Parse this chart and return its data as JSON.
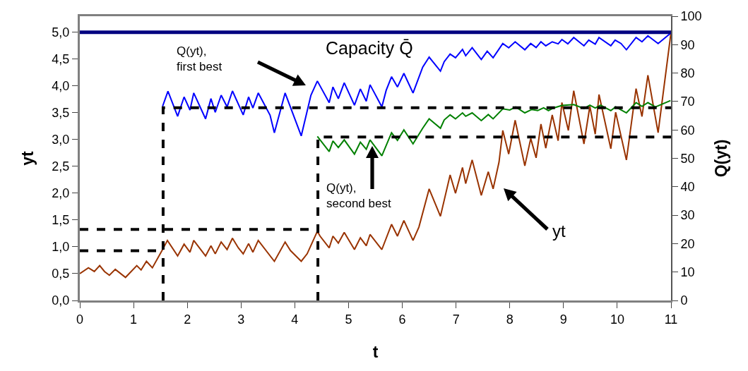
{
  "chart_data": {
    "type": "line",
    "xlabel": "t",
    "ylabel": "yt",
    "y2label": "Q(yt)",
    "marker": "none",
    "grid": false,
    "xlim": [
      0,
      11
    ],
    "xticks": [
      0,
      1,
      2,
      3,
      4,
      5,
      6,
      7,
      8,
      9,
      10,
      11
    ],
    "ylim": [
      0,
      5.3
    ],
    "yticks": [
      {
        "value": 0,
        "label": "0,0"
      },
      {
        "value": 0.5,
        "label": "0,5"
      },
      {
        "value": 1,
        "label": "1,0"
      },
      {
        "value": 1.5,
        "label": "1,5"
      },
      {
        "value": 2,
        "label": "2,0"
      },
      {
        "value": 2.5,
        "label": "2,5"
      },
      {
        "value": 3,
        "label": "3,0"
      },
      {
        "value": 3.5,
        "label": "3,5"
      },
      {
        "value": 4,
        "label": "4,0"
      },
      {
        "value": 4.5,
        "label": "4,5"
      },
      {
        "value": 5,
        "label": "5,0"
      }
    ],
    "y2lim": [
      0,
      100
    ],
    "y2ticks": [
      0,
      10,
      20,
      30,
      40,
      50,
      60,
      70,
      80,
      90,
      100
    ],
    "series": [
      {
        "color": "#993300",
        "x": [
          0,
          0.16,
          0.27,
          0.37,
          0.46,
          0.55,
          0.66,
          0.85,
          1.06,
          1.14,
          1.24,
          1.35,
          1.54,
          1.63,
          1.82,
          1.94,
          2.05,
          2.12,
          2.34,
          2.44,
          2.52,
          2.63,
          2.74,
          2.84,
          2.95,
          3.04,
          3.14,
          3.22,
          3.32,
          3.62,
          3.82,
          3.92,
          4.12,
          4.23,
          4.42,
          4.47,
          4.64,
          4.71,
          4.81,
          4.92,
          5.11,
          5.22,
          5.33,
          5.4,
          5.62,
          5.8,
          5.91,
          6.03,
          6.2,
          6.31,
          6.5,
          6.71,
          6.89,
          6.99,
          7.12,
          7.18,
          7.3,
          7.47,
          7.6,
          7.69,
          7.8,
          7.87,
          7.98,
          8.1,
          8.28,
          8.39,
          8.49,
          8.58,
          8.67,
          8.79,
          8.9,
          8.97,
          9.09,
          9.19,
          9.38,
          9.49,
          9.59,
          9.66,
          9.88,
          9.97,
          10.17,
          10.35,
          10.46,
          10.57,
          10.76,
          11
        ],
        "values": [
          0.5,
          0.61,
          0.54,
          0.65,
          0.54,
          0.47,
          0.58,
          0.43,
          0.65,
          0.57,
          0.73,
          0.61,
          0.95,
          1.12,
          0.83,
          1.05,
          0.9,
          1.12,
          0.83,
          1.02,
          0.87,
          1.09,
          0.95,
          1.16,
          0.98,
          0.87,
          1.06,
          0.9,
          1.12,
          0.73,
          1.09,
          0.93,
          0.73,
          0.87,
          1.29,
          1.2,
          0.98,
          1.2,
          1.07,
          1.27,
          0.95,
          1.17,
          1.02,
          1.23,
          0.95,
          1.42,
          1.2,
          1.49,
          1.12,
          1.37,
          2.08,
          1.57,
          2.34,
          2.0,
          2.48,
          2.18,
          2.62,
          1.96,
          2.4,
          2.08,
          2.58,
          3.17,
          2.73,
          3.36,
          2.51,
          3.02,
          2.66,
          3.29,
          2.84,
          3.46,
          2.98,
          3.69,
          3.17,
          3.91,
          2.92,
          3.62,
          3.1,
          3.84,
          2.83,
          3.51,
          2.62,
          3.95,
          3.43,
          4.2,
          3.13,
          5.0
        ]
      },
      {
        "color": "#0000ff",
        "axis": "y2",
        "x": [
          1.54,
          1.64,
          1.82,
          1.94,
          2.05,
          2.12,
          2.34,
          2.44,
          2.52,
          2.63,
          2.74,
          2.84,
          3.04,
          3.14,
          3.22,
          3.32,
          3.54,
          3.62,
          3.82,
          4.12,
          4.3,
          4.42,
          4.64,
          4.71,
          4.81,
          4.92,
          5.11,
          5.22,
          5.33,
          5.4,
          5.62,
          5.7,
          5.8,
          5.91,
          6.03,
          6.2,
          6.38,
          6.5,
          6.71,
          6.78,
          6.89,
          6.99,
          7.12,
          7.18,
          7.3,
          7.47,
          7.58,
          7.69,
          7.87,
          7.98,
          8.1,
          8.28,
          8.39,
          8.49,
          8.58,
          8.67,
          8.79,
          8.9,
          8.97,
          9.08,
          9.19,
          9.38,
          9.47,
          9.59,
          9.66,
          9.88,
          9.96,
          10.07,
          10.17,
          10.35,
          10.46,
          10.57,
          10.76,
          10.99
        ],
        "values": [
          68.3,
          73.6,
          64.8,
          71.6,
          67,
          73,
          63.9,
          71,
          66.2,
          72.2,
          68.1,
          73.7,
          65.3,
          71.6,
          67.7,
          73,
          65.2,
          59,
          73,
          57.9,
          72.2,
          77.2,
          69.6,
          75.1,
          71,
          76.6,
          68.7,
          74.4,
          70.1,
          75.9,
          68.1,
          73.9,
          78.7,
          75.1,
          79.9,
          73,
          82.1,
          85.6,
          80.7,
          84,
          86.7,
          85.4,
          88.3,
          86.1,
          88.9,
          84.8,
          87.7,
          85.4,
          90.4,
          88.9,
          91,
          88.2,
          90.4,
          89,
          91,
          89.6,
          91,
          90.3,
          91.8,
          90.3,
          92.5,
          89.6,
          91.6,
          90.2,
          92.5,
          89.6,
          91.6,
          90.4,
          88.2,
          92.5,
          91,
          93.1,
          90.4,
          94
        ]
      },
      {
        "color": "#008000",
        "axis": "y2",
        "x": [
          4.42,
          4.64,
          4.71,
          4.81,
          4.92,
          5.11,
          5.22,
          5.33,
          5.4,
          5.62,
          5.8,
          5.91,
          6.03,
          6.2,
          6.38,
          6.5,
          6.71,
          6.78,
          6.89,
          6.99,
          7.12,
          7.18,
          7.3,
          7.47,
          7.6,
          7.69,
          7.87,
          8.0,
          8.11,
          8.28,
          8.41,
          8.52,
          8.63,
          8.72,
          8.81,
          8.97,
          9.19,
          9.38,
          9.49,
          9.59,
          9.69,
          9.88,
          9.97,
          10.17,
          10.35,
          10.46,
          10.57,
          10.71,
          10.99
        ],
        "values": [
          57.7,
          52.4,
          56.1,
          53.8,
          56.5,
          51.5,
          55.7,
          53.2,
          56.5,
          50.9,
          59,
          56.3,
          60,
          55.1,
          60.6,
          63.9,
          60.6,
          63.5,
          65.3,
          63.9,
          66,
          64.8,
          66,
          63.3,
          65.4,
          63.9,
          67.4,
          67,
          68.1,
          66,
          67.2,
          66.8,
          67.8,
          66.8,
          67.7,
          68.6,
          68.9,
          67.5,
          68.7,
          67.7,
          68.7,
          66.8,
          68.1,
          66,
          69.6,
          68.3,
          69.6,
          68.1,
          70.3
        ]
      },
      {
        "color": "#000000",
        "axis": "y2",
        "line_style": "dashed",
        "x": [
          0,
          1.55
        ],
        "values": [
          17.5,
          17.5
        ]
      },
      {
        "color": "#000000",
        "axis": "y2",
        "line_style": "dashed",
        "x": [
          1.55,
          1.55,
          11
        ],
        "values": [
          0,
          67.8,
          67.8
        ]
      },
      {
        "color": "#000000",
        "axis": "y2",
        "line_style": "dashed",
        "x": [
          0,
          4.43
        ],
        "values": [
          25,
          25
        ]
      },
      {
        "color": "#000000",
        "axis": "y2",
        "line_style": "dashed",
        "x": [
          4.43,
          4.43,
          11
        ],
        "values": [
          0,
          57.5,
          57.5
        ]
      }
    ],
    "ref_lines": [
      {
        "axis": "y",
        "value": 5,
        "label": "Capacity Q̄",
        "color": "#000080"
      }
    ],
    "annotations": [
      "Q(yt),\nfirst best",
      "Q(yt),\nsecond best",
      "yt"
    ]
  }
}
